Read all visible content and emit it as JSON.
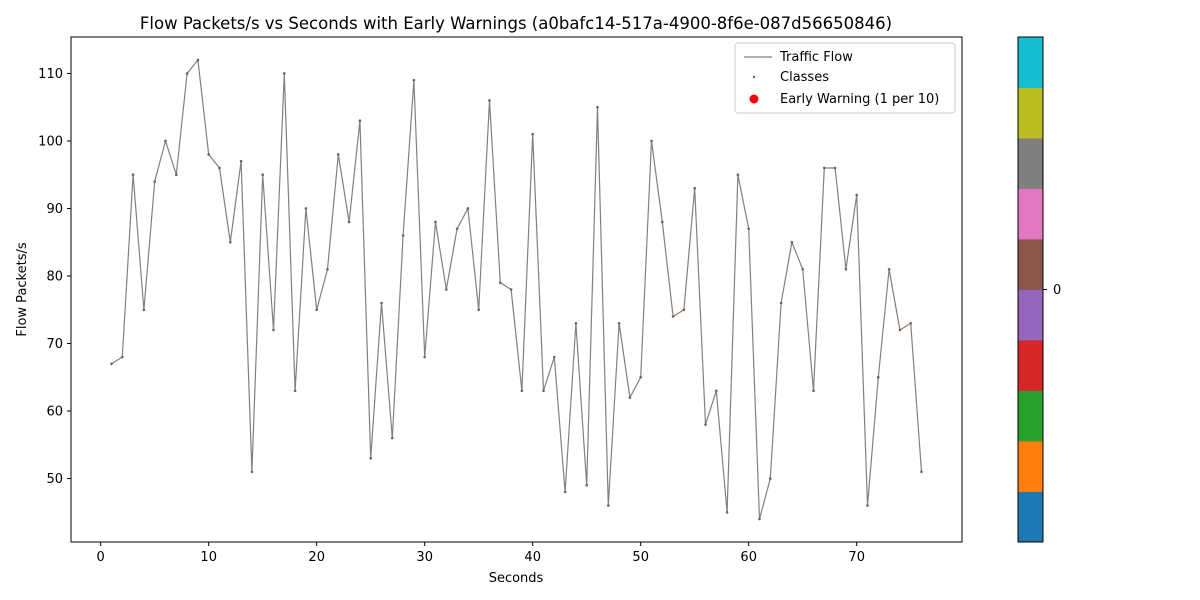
{
  "chart_data": {
    "type": "line",
    "title": "Flow Packets/s vs Seconds with Early Warnings (a0bafc14-517a-4900-8f6e-087d56650846)",
    "xlabel": "Seconds",
    "ylabel": "Flow Packets/s",
    "xlim": [
      -2.75,
      79.75
    ],
    "ylim": [
      40.6,
      115.4
    ],
    "x_ticks": [
      0,
      10,
      20,
      30,
      40,
      50,
      60,
      70
    ],
    "y_ticks": [
      50,
      60,
      70,
      80,
      90,
      100,
      110
    ],
    "grid": false,
    "legend_position": "top-right",
    "series": [
      {
        "name": "Traffic Flow",
        "color": "#808080",
        "x": [
          1,
          2,
          3,
          4,
          5,
          6,
          7,
          8,
          9,
          10,
          11,
          12,
          13,
          14,
          15,
          16,
          17,
          18,
          19,
          20,
          21,
          22,
          23,
          24,
          25,
          26,
          27,
          28,
          29,
          30,
          31,
          32,
          33,
          34,
          35,
          36,
          37,
          38,
          39,
          40,
          41,
          42,
          43,
          44,
          45,
          46,
          47,
          48,
          49,
          50,
          51,
          52,
          53,
          54,
          55,
          56,
          57,
          58,
          59,
          60,
          61,
          62,
          63,
          64,
          65,
          66,
          67,
          68,
          69,
          70,
          71,
          72,
          73,
          74,
          75,
          76
        ],
        "values": [
          67,
          68,
          95,
          75,
          94,
          100,
          95,
          110,
          112,
          98,
          96,
          85,
          97,
          51,
          95,
          72,
          110,
          63,
          90,
          75,
          81,
          98,
          88,
          103,
          53,
          76,
          56,
          86,
          109,
          68,
          88,
          78,
          87,
          90,
          75,
          106,
          79,
          78,
          63,
          101,
          63,
          68,
          48,
          73,
          49,
          105,
          46,
          73,
          62,
          65,
          100,
          88,
          74,
          75,
          93,
          58,
          63,
          45,
          95,
          87,
          44,
          50,
          76,
          85,
          81,
          63,
          96,
          96,
          81,
          92,
          46,
          65,
          81,
          72,
          73,
          51
        ]
      }
    ],
    "markers": {
      "name": "Classes",
      "color": "#8c564b"
    },
    "early_warning": {
      "name": "Early Warning (1 per 10)",
      "color": "#ff0000",
      "points": []
    },
    "colorbar": {
      "tick_label": "0",
      "colors": [
        "#1f77b4",
        "#ff7f0e",
        "#2ca02c",
        "#d62728",
        "#9467bd",
        "#8c564b",
        "#e377c2",
        "#7f7f7f",
        "#bcbd22",
        "#17becf"
      ]
    }
  }
}
